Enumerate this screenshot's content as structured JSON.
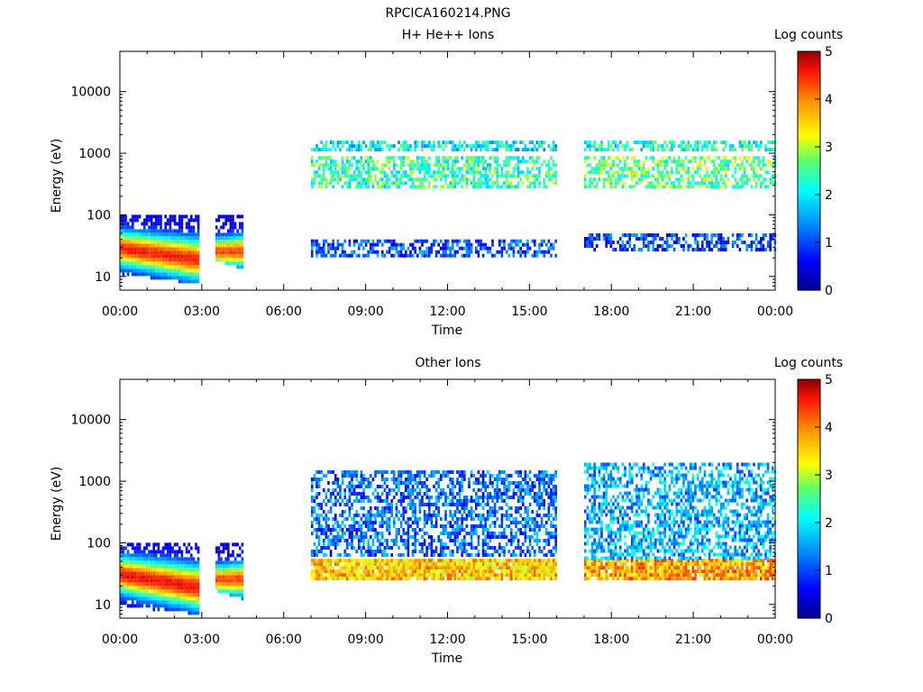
{
  "figure": {
    "title": "RPCICA160214.PNG"
  },
  "colorbar": {
    "label": "Log counts",
    "ticks": [
      "0",
      "1",
      "2",
      "3",
      "4",
      "5"
    ],
    "range": [
      0,
      5
    ]
  },
  "chart_data": [
    {
      "type": "heatmap",
      "title": "H+ He++ Ions",
      "xlabel": "Time",
      "ylabel": "Energy (eV)",
      "yscale": "log",
      "ylim": [
        6,
        45000
      ],
      "x_ticks": [
        "00:00",
        "03:00",
        "06:00",
        "09:00",
        "12:00",
        "15:00",
        "18:00",
        "21:00",
        "00:00"
      ],
      "y_ticks": [
        "10",
        "100",
        "1000",
        "10000"
      ],
      "data_intervals": [
        {
          "start": "00:00",
          "end": "02:50",
          "emin": 8,
          "emax": 100,
          "core_energy_start": 30,
          "core_energy_end": 20,
          "peak_log_counts": 4.2
        },
        {
          "start": "03:30",
          "end": "04:30",
          "emin": 14,
          "emax": 100,
          "core_energy": 27,
          "peak_log_counts": 4.0
        },
        {
          "start": "07:00",
          "end": "16:00",
          "bands": [
            {
              "energy_range": [
                23,
                40
              ],
              "log_counts": 1.0
            },
            {
              "energy_range": [
                300,
                900
              ],
              "log_counts": 2.4
            },
            {
              "energy_range": [
                1200,
                1600
              ],
              "log_counts": 2.0
            }
          ]
        },
        {
          "start": "17:00",
          "end": "24:00",
          "bands": [
            {
              "energy_range": [
                28,
                50
              ],
              "log_counts": 1.0
            },
            {
              "energy_range": [
                300,
                900
              ],
              "log_counts": 2.6
            },
            {
              "energy_range": [
                1200,
                1600
              ],
              "log_counts": 2.2
            }
          ]
        }
      ]
    },
    {
      "type": "heatmap",
      "title": "Other Ions",
      "xlabel": "Time",
      "ylabel": "Energy (eV)",
      "yscale": "log",
      "ylim": [
        6,
        45000
      ],
      "x_ticks": [
        "00:00",
        "03:00",
        "06:00",
        "09:00",
        "12:00",
        "15:00",
        "18:00",
        "21:00",
        "00:00"
      ],
      "y_ticks": [
        "10",
        "100",
        "1000",
        "10000"
      ],
      "data_intervals": [
        {
          "start": "00:00",
          "end": "02:50",
          "emin": 7,
          "emax": 100,
          "core_energy_start": 32,
          "core_energy_end": 20,
          "peak_log_counts": 4.3
        },
        {
          "start": "03:30",
          "end": "04:30",
          "emin": 13,
          "emax": 100,
          "core_energy": 27,
          "peak_log_counts": 4.0
        },
        {
          "start": "07:00",
          "end": "16:00",
          "bands": [
            {
              "energy_range": [
                28,
                55
              ],
              "log_counts": 3.6
            },
            {
              "energy_range": [
                60,
                1500
              ],
              "log_counts": 1.2
            }
          ]
        },
        {
          "start": "17:00",
          "end": "24:00",
          "bands": [
            {
              "energy_range": [
                28,
                55
              ],
              "log_counts": 3.8
            },
            {
              "energy_range": [
                60,
                2000
              ],
              "log_counts": 1.6
            }
          ]
        }
      ]
    }
  ]
}
